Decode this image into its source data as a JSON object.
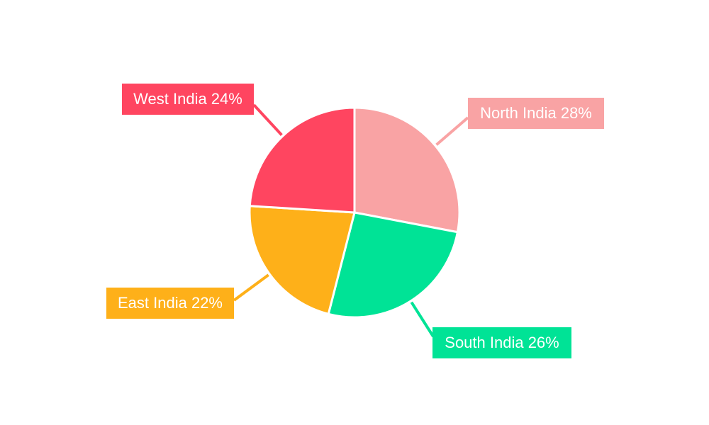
{
  "chart_data": {
    "type": "pie",
    "title": "",
    "start_angle": "top, clockwise",
    "slices": [
      {
        "label": "North India",
        "value": 28,
        "text": "North India 28%",
        "color": "#F9A3A4"
      },
      {
        "label": "South India",
        "value": 26,
        "text": "South India 26%",
        "color": "#00E396"
      },
      {
        "label": "East India",
        "value": 22,
        "text": "East India 22%",
        "color": "#FEB019"
      },
      {
        "label": "West India",
        "value": 24,
        "text": "West India 24%",
        "color": "#FF4560"
      }
    ],
    "legend": "none",
    "data_labels": "outside with leader lines"
  }
}
